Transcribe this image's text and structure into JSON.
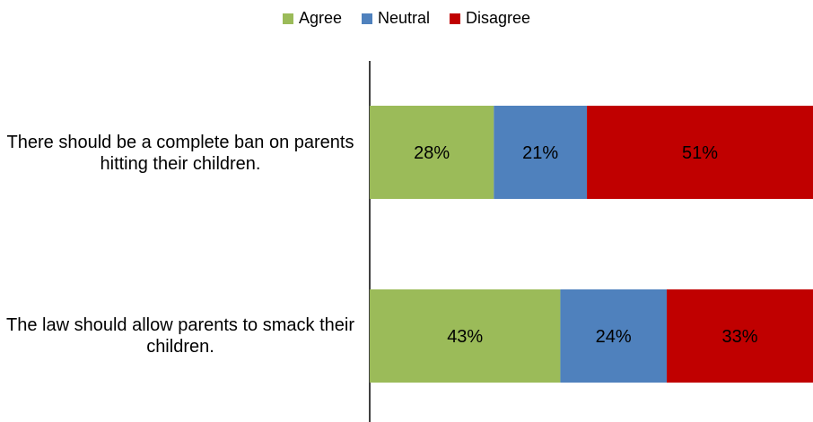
{
  "chart_data": {
    "type": "bar",
    "orientation": "horizontal",
    "stacked": true,
    "categories": [
      "There should be a complete ban on parents hitting their children.",
      "The law should allow parents to smack their children."
    ],
    "series": [
      {
        "name": "Agree",
        "color": "#9BBB59",
        "values": [
          28,
          43
        ]
      },
      {
        "name": "Neutral",
        "color": "#4F81BD",
        "values": [
          21,
          24
        ]
      },
      {
        "name": "Disagree",
        "color": "#C00000",
        "values": [
          51,
          33
        ]
      }
    ],
    "data_labels": [
      [
        "28%",
        "21%",
        "51%"
      ],
      [
        "43%",
        "24%",
        "33%"
      ]
    ],
    "xlim": [
      0,
      100
    ],
    "legend_position": "top",
    "grid": false
  }
}
